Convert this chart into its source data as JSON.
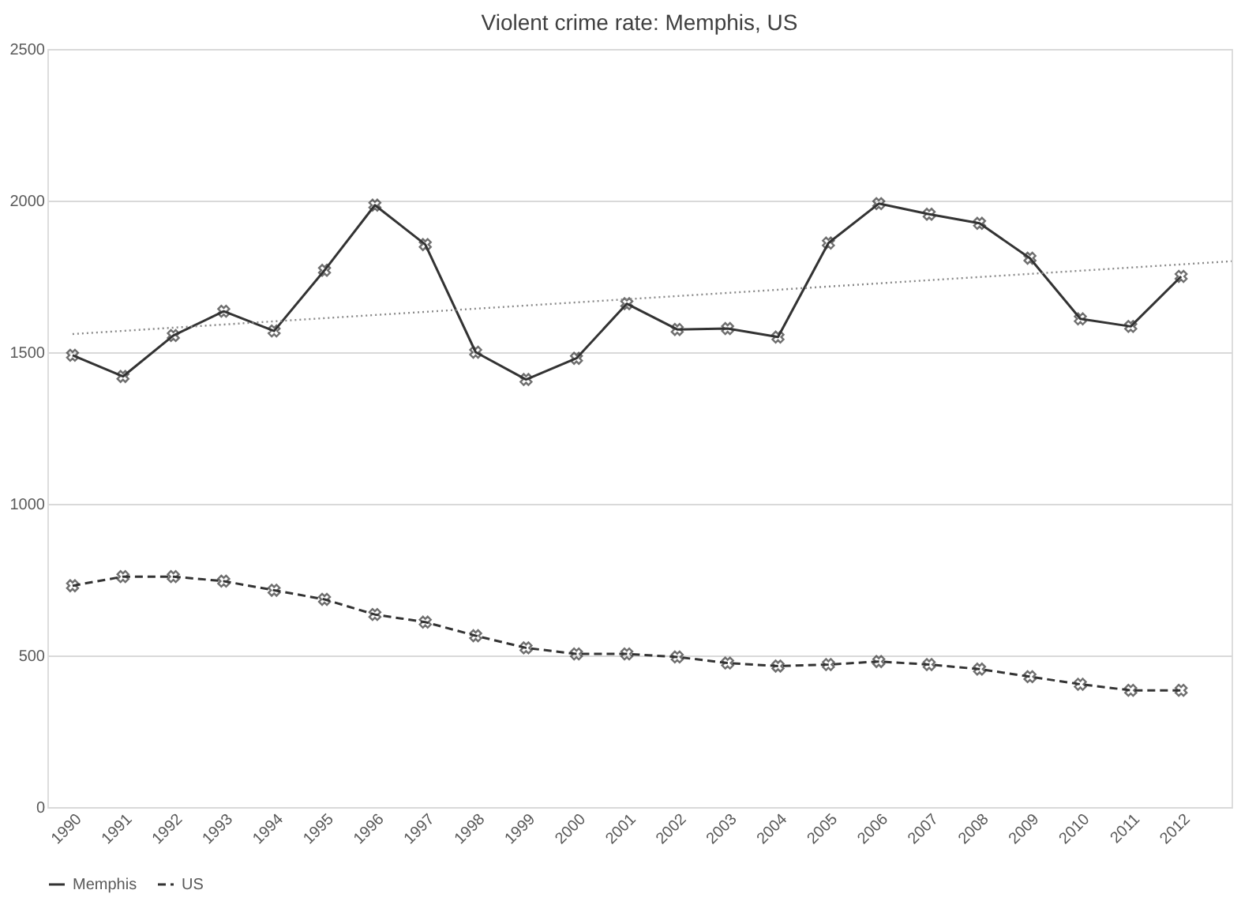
{
  "chart_data": {
    "type": "line",
    "title": "Violent crime rate: Memphis, US",
    "x": [
      1990,
      1991,
      1992,
      1993,
      1994,
      1995,
      1996,
      1997,
      1998,
      1999,
      2000,
      2001,
      2002,
      2003,
      2004,
      2005,
      2006,
      2007,
      2008,
      2009,
      2010,
      2011,
      2012
    ],
    "xlim": [
      1989.5,
      2013
    ],
    "xticks": [
      1990,
      1991,
      1992,
      1993,
      1994,
      1995,
      1996,
      1997,
      1998,
      1999,
      2000,
      2001,
      2002,
      2003,
      2004,
      2005,
      2006,
      2007,
      2008,
      2009,
      2010,
      2011,
      2012
    ],
    "ylim": [
      0,
      2500
    ],
    "yticks": [
      0,
      500,
      1000,
      1500,
      2000,
      2500
    ],
    "grid": "y",
    "legend": "bottom",
    "series": [
      {
        "name": "Memphis",
        "color": "#333333",
        "line_style": "solid",
        "marker": "cross",
        "values": [
          1490,
          1420,
          1555,
          1635,
          1570,
          1770,
          1985,
          1855,
          1500,
          1410,
          1480,
          1660,
          1575,
          1578,
          1550,
          1860,
          1990,
          1955,
          1925,
          1810,
          1610,
          1585,
          1750
        ]
      },
      {
        "name": "US",
        "color": "#333333",
        "line_style": "dashed",
        "marker": "cross",
        "values": [
          730,
          760,
          760,
          745,
          715,
          685,
          635,
          610,
          565,
          525,
          505,
          505,
          495,
          475,
          465,
          470,
          480,
          470,
          455,
          430,
          405,
          385,
          385
        ]
      },
      {
        "type": "line",
        "color": "#888888",
        "line_style": "dotted",
        "marker": "none",
        "x": [
          1990,
          2013
        ],
        "values": [
          1560,
          1800
        ]
      }
    ]
  }
}
